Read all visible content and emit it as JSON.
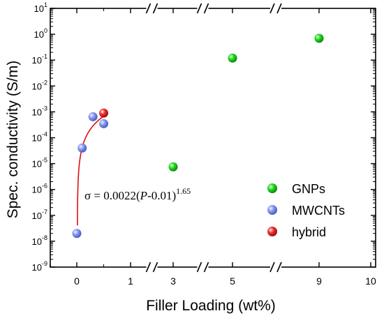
{
  "chart_data": {
    "type": "scatter",
    "xlabel": "Filler Loading (wt%)",
    "ylabel": "Spec. conductivity (S/m)",
    "x_axis": {
      "ticks": [
        "0",
        "1",
        "3",
        "5",
        "9",
        "10"
      ],
      "breaks": "broken axis between 1 and 3, 3 and 5, 5 and 9"
    },
    "y_axis": {
      "scale": "log",
      "ylim": [
        1e-09,
        10
      ],
      "ticks": [
        {
          "base": "10",
          "exp": "-9"
        },
        {
          "base": "10",
          "exp": "-8"
        },
        {
          "base": "10",
          "exp": "-7"
        },
        {
          "base": "10",
          "exp": "-6"
        },
        {
          "base": "10",
          "exp": "-5"
        },
        {
          "base": "10",
          "exp": "-4"
        },
        {
          "base": "10",
          "exp": "-3"
        },
        {
          "base": "10",
          "exp": "-2"
        },
        {
          "base": "10",
          "exp": "-1"
        },
        {
          "base": "10",
          "exp": "0"
        },
        {
          "base": "10",
          "exp": "1"
        }
      ]
    },
    "legend": {
      "position": "right",
      "entries": [
        {
          "label": "GNPs",
          "color": "#22dd22"
        },
        {
          "label": "MWCNTs",
          "color": "#8899ee"
        },
        {
          "label": "hybrid",
          "color": "#ee3333"
        }
      ]
    },
    "series": [
      {
        "name": "GNPs",
        "color": "#22dd22",
        "points": [
          {
            "x": 3,
            "y": 7.5e-06
          },
          {
            "x": 5,
            "y": 0.12
          },
          {
            "x": 9,
            "y": 0.7
          }
        ]
      },
      {
        "name": "MWCNTs",
        "color": "#8899ee",
        "points": [
          {
            "x": 0,
            "y": 2e-08
          },
          {
            "x": 0.1,
            "y": 4e-05
          },
          {
            "x": 0.3,
            "y": 0.00065
          },
          {
            "x": 0.5,
            "y": 0.00035
          }
        ]
      },
      {
        "name": "hybrid",
        "color": "#ee3333",
        "points": [
          {
            "x": 0.5,
            "y": 0.0009
          }
        ]
      }
    ],
    "fit": {
      "color": "#dd1111",
      "coefficient": 0.0022,
      "threshold": 0.01,
      "exponent": 1.65,
      "x_range": [
        0,
        0.5
      ],
      "label": {
        "sigma": "σ",
        "prefix": " = 0.0022(",
        "var": "P",
        "suffix": "-0.01)",
        "exp": "1.65"
      }
    }
  }
}
